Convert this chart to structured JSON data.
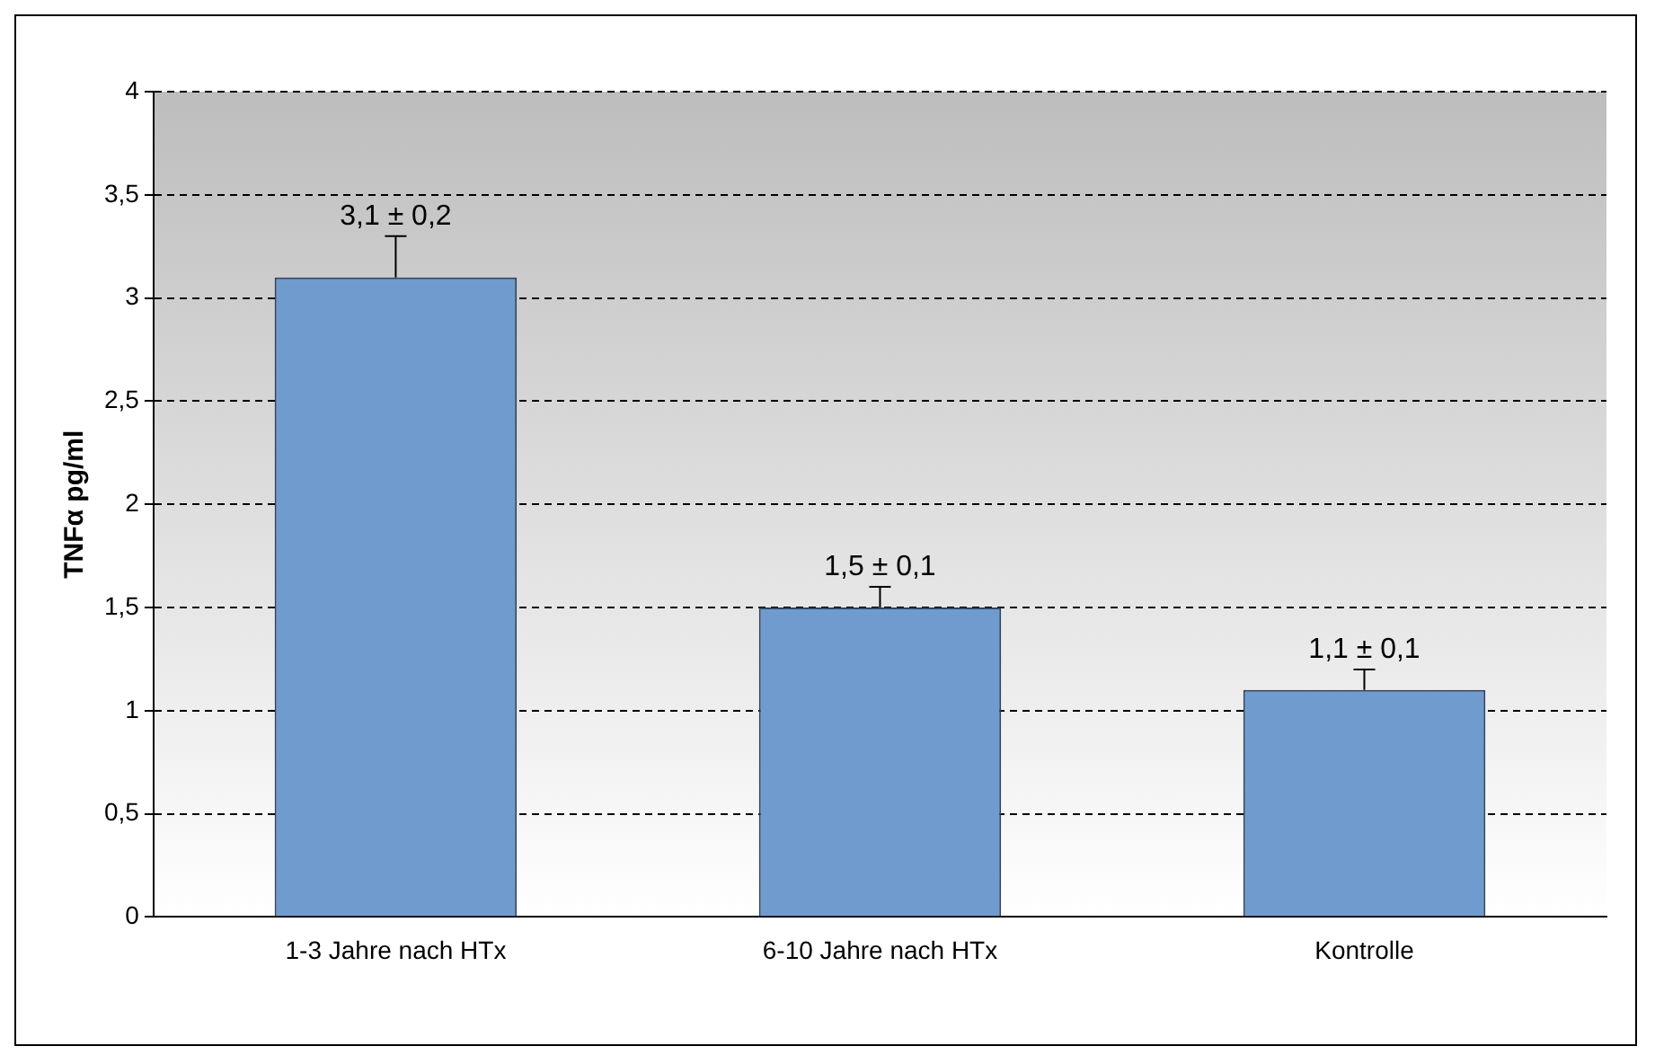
{
  "chart_data": {
    "type": "bar",
    "ylabel": "TNFα pg/ml",
    "categories": [
      "1-3 Jahre nach HTx",
      "6-10 Jahre nach HTx",
      "Kontrolle"
    ],
    "values": [
      3.1,
      1.5,
      1.1
    ],
    "color": "#6f9bcf",
    "errors": [
      [
        3.1,
        3.3
      ],
      [
        1.5,
        1.6
      ],
      [
        1.1,
        1.2
      ]
    ],
    "value_labels": [
      "3,1 ± 0,2",
      "1,5 ± 0,1",
      "1,1 ± 0,1"
    ],
    "ylim": [
      0,
      4
    ],
    "yticks": [
      0,
      {
        "value": 0.5,
        "label": "0,5"
      },
      1,
      {
        "value": 1.5,
        "label": "1,5"
      },
      2,
      {
        "value": 2.5,
        "label": "2,5"
      },
      3,
      {
        "value": 3.5,
        "label": "3,5"
      },
      4
    ],
    "grid": "y",
    "legend": false
  }
}
